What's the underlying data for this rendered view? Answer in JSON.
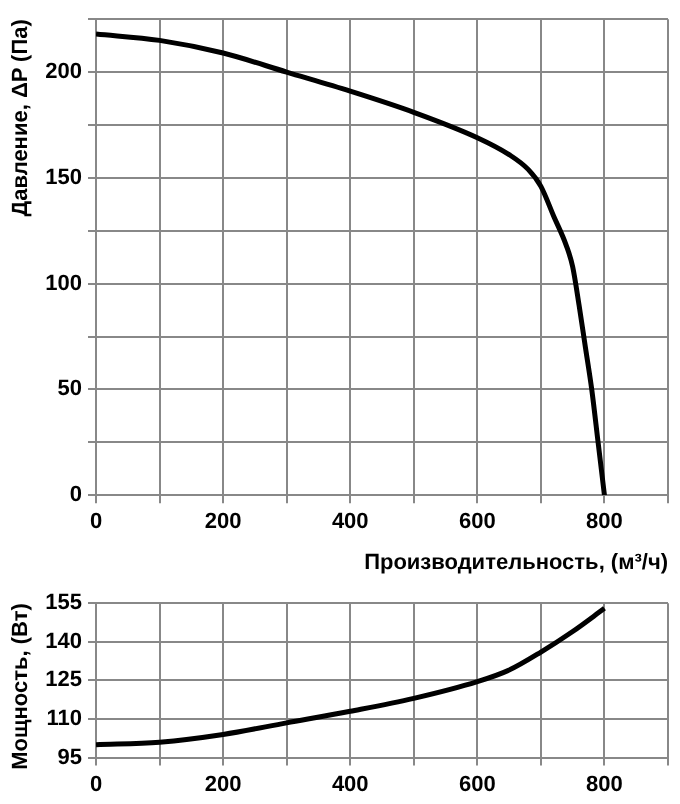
{
  "chart_data": [
    {
      "type": "line",
      "xlabel": "Производительность, (м³/ч)",
      "ylabel": "Давление, ΔP (Па)",
      "x": [
        0,
        100,
        200,
        300,
        400,
        500,
        600,
        650,
        680,
        700,
        720,
        740,
        750,
        760,
        770,
        780,
        790,
        800
      ],
      "series": [
        {
          "color": "#000000",
          "values": [
            218,
            215,
            209,
            200,
            191,
            181,
            169,
            161,
            154,
            146,
            132,
            118,
            108,
            90,
            70,
            50,
            25,
            0
          ]
        }
      ],
      "xlim": [
        0,
        900
      ],
      "xticks": [
        0,
        {
          "value": 100,
          "label": null
        },
        200,
        {
          "value": 300,
          "label": null
        },
        400,
        {
          "value": 500,
          "label": null
        },
        600,
        {
          "value": 700,
          "label": null
        },
        800,
        {
          "value": 900,
          "label": null
        }
      ],
      "ylim": [
        0,
        225
      ],
      "yticks": [
        0,
        {
          "value": 25,
          "label": null
        },
        50,
        {
          "value": 75,
          "label": null
        },
        100,
        {
          "value": 125,
          "label": null
        },
        150,
        {
          "value": 175,
          "label": null
        },
        200,
        {
          "value": 225,
          "label": null
        }
      ],
      "grid": true,
      "marker": "none",
      "line_style": "solid"
    },
    {
      "type": "line",
      "ylabel": "Мощность, (Вт)",
      "x": [
        0,
        100,
        200,
        300,
        400,
        500,
        600,
        650,
        700,
        750,
        800
      ],
      "series": [
        {
          "color": "#000000",
          "values": [
            100,
            101,
            104,
            108.5,
            113,
            118,
            124.5,
            129,
            136,
            144,
            153
          ]
        }
      ],
      "xlim": [
        0,
        900
      ],
      "xticks": [
        0,
        {
          "value": 100,
          "label": null
        },
        200,
        {
          "value": 300,
          "label": null
        },
        400,
        {
          "value": 500,
          "label": null
        },
        600,
        {
          "value": 700,
          "label": null
        },
        800,
        {
          "value": 900,
          "label": null
        }
      ],
      "ylim": [
        95,
        155
      ],
      "yticks": [
        95,
        110,
        125,
        140,
        155
      ],
      "grid": true,
      "marker": "none",
      "line_style": "solid"
    }
  ]
}
